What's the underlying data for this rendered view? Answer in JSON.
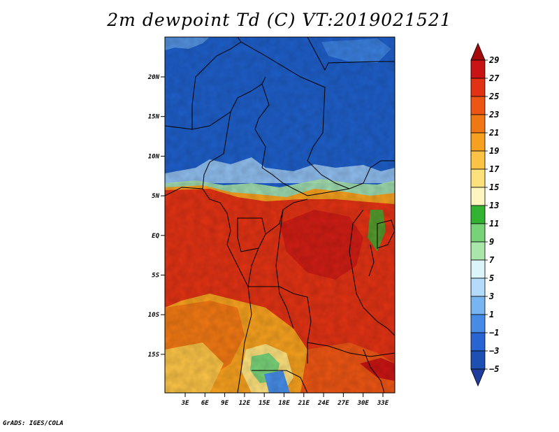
{
  "title": "2m dewpoint Td (C) VT:2019021521",
  "footer": "GrADS: IGES/COLA",
  "map": {
    "lat_labels": [
      "20N",
      "15N",
      "10N",
      "5N",
      "EQ",
      "5S",
      "10S",
      "15S"
    ],
    "lon_labels": [
      "3E",
      "6E",
      "9E",
      "12E",
      "15E",
      "18E",
      "21E",
      "24E",
      "27E",
      "30E",
      "33E"
    ]
  },
  "colorbar": {
    "levels": [
      "29",
      "27",
      "25",
      "23",
      "21",
      "19",
      "17",
      "15",
      "13",
      "11",
      "9",
      "7",
      "5",
      "3",
      "1",
      "−1",
      "−3",
      "−5"
    ],
    "colors": [
      "#a50a0a",
      "#c81414",
      "#e13214",
      "#ec5514",
      "#f07814",
      "#f5a01e",
      "#fac346",
      "#fde17d",
      "#fff5be",
      "#32b432",
      "#78d278",
      "#aae6aa",
      "#dcf5fa",
      "#b4dcfa",
      "#78b4f0",
      "#468ce6",
      "#2864d2",
      "#1e50b4",
      "#1e3c9b"
    ]
  }
}
